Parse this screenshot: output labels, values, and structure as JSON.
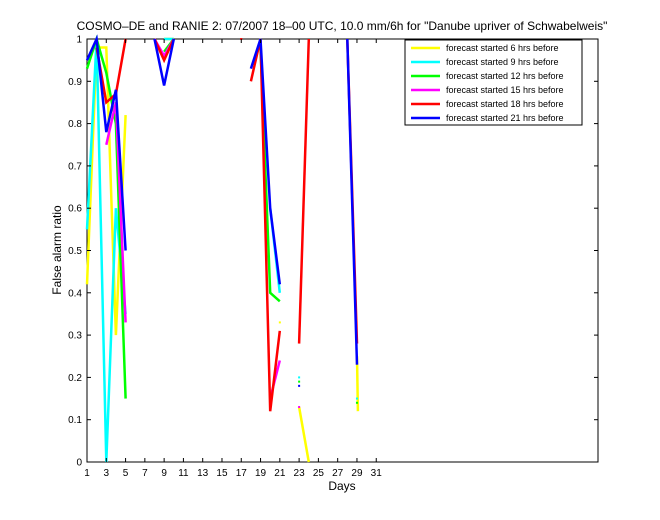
{
  "chart_data": {
    "type": "line",
    "title": "COSMO–DE and RANIE 2: 07/2007 18–00 UTC, 10.0 mm/6h for \"Danube upriver of Schwabelweis\"",
    "xlabel": "Days",
    "ylabel": "False alarm ratio",
    "xlim": [
      1,
      54
    ],
    "ylim": [
      0,
      1
    ],
    "xticks": [
      1,
      3,
      5,
      7,
      9,
      11,
      13,
      15,
      17,
      19,
      21,
      23,
      25,
      27,
      29,
      31
    ],
    "yticks": [
      0,
      0.1,
      0.2,
      0.3,
      0.4,
      0.5,
      0.6,
      0.7,
      0.8,
      0.9,
      1
    ],
    "ytick_labels": [
      "0",
      "0.1",
      "0.2",
      "0.3",
      "0.4",
      "0.5",
      "0.6",
      "0.7",
      "0.8",
      "0.9",
      "1"
    ],
    "grid": false,
    "legend_position": "top-right",
    "series": [
      {
        "name": "forecast started 6 hrs before",
        "color": "#ffff00",
        "segments": [
          [
            [
              1,
              0.42
            ],
            [
              2,
              0.98
            ],
            [
              3,
              0.98
            ],
            [
              4,
              0.3
            ],
            [
              5,
              0.82
            ]
          ],
          [
            [
              9,
              1
            ],
            [
              10,
              1
            ]
          ],
          [
            [
              21,
              0.33
            ]
          ],
          [
            [
              23,
              0.13
            ],
            [
              24,
              0
            ]
          ],
          [
            [
              29,
              0.25
            ],
            [
              29.1,
              0.12
            ]
          ]
        ]
      },
      {
        "name": "forecast started 9 hrs before",
        "color": "#00ffff",
        "segments": [
          [
            [
              1,
              0.55
            ],
            [
              2,
              1
            ],
            [
              3,
              0
            ],
            [
              4,
              0.6
            ],
            [
              5,
              0.35
            ]
          ],
          [
            [
              9,
              1
            ],
            [
              10,
              1
            ]
          ],
          [
            [
              20,
              0.6
            ],
            [
              21,
              0.4
            ]
          ],
          [
            [
              23,
              0.2
            ]
          ],
          [
            [
              29,
              0.15
            ]
          ]
        ]
      },
      {
        "name": "forecast started 12 hrs before",
        "color": "#00ff00",
        "segments": [
          [
            [
              1,
              0.93
            ],
            [
              2,
              1
            ],
            [
              3,
              0.92
            ],
            [
              4,
              0.8
            ],
            [
              5,
              0.15
            ]
          ],
          [
            [
              9,
              0.97
            ],
            [
              10,
              1
            ]
          ],
          [
            [
              19,
              0.98
            ],
            [
              20,
              0.4
            ],
            [
              21,
              0.38
            ]
          ],
          [
            [
              23,
              0.19
            ]
          ],
          [
            [
              29,
              0.14
            ]
          ]
        ]
      },
      {
        "name": "forecast started 15 hrs before",
        "color": "#ff00ff",
        "segments": [
          [
            [
              3,
              0.75
            ],
            [
              4,
              0.85
            ],
            [
              5,
              0.33
            ]
          ],
          [
            [
              8,
              1
            ],
            [
              9,
              0.96
            ],
            [
              10,
              1
            ]
          ],
          [
            [
              20,
              0.15
            ],
            [
              21,
              0.24
            ]
          ],
          [
            [
              23,
              0.13
            ]
          ]
        ]
      },
      {
        "name": "forecast started 18 hrs before",
        "color": "#ff0000",
        "segments": [
          [
            [
              2,
              0.98
            ],
            [
              3,
              0.85
            ],
            [
              4,
              0.87
            ],
            [
              5,
              1
            ]
          ],
          [
            [
              8,
              1
            ],
            [
              9,
              0.95
            ],
            [
              10,
              1
            ]
          ],
          [
            [
              17,
              1
            ]
          ],
          [
            [
              18,
              0.9
            ],
            [
              19,
              1
            ],
            [
              20,
              0.12
            ],
            [
              21,
              0.31
            ]
          ],
          [
            [
              23,
              0.28
            ],
            [
              24,
              1
            ]
          ],
          [
            [
              28,
              1
            ],
            [
              29,
              0.28
            ]
          ]
        ]
      },
      {
        "name": "forecast started 21 hrs before",
        "color": "#0000ff",
        "segments": [
          [
            [
              1,
              0.95
            ],
            [
              2,
              1
            ],
            [
              3,
              0.78
            ],
            [
              4,
              0.88
            ],
            [
              5,
              0.5
            ]
          ],
          [
            [
              8,
              1
            ],
            [
              9,
              0.89
            ],
            [
              10,
              1
            ]
          ],
          [
            [
              18,
              0.93
            ],
            [
              19,
              1
            ],
            [
              20,
              0.6
            ],
            [
              21,
              0.42
            ]
          ],
          [
            [
              23,
              0.18
            ]
          ],
          [
            [
              28,
              1
            ],
            [
              29,
              0.23
            ]
          ]
        ]
      }
    ]
  }
}
